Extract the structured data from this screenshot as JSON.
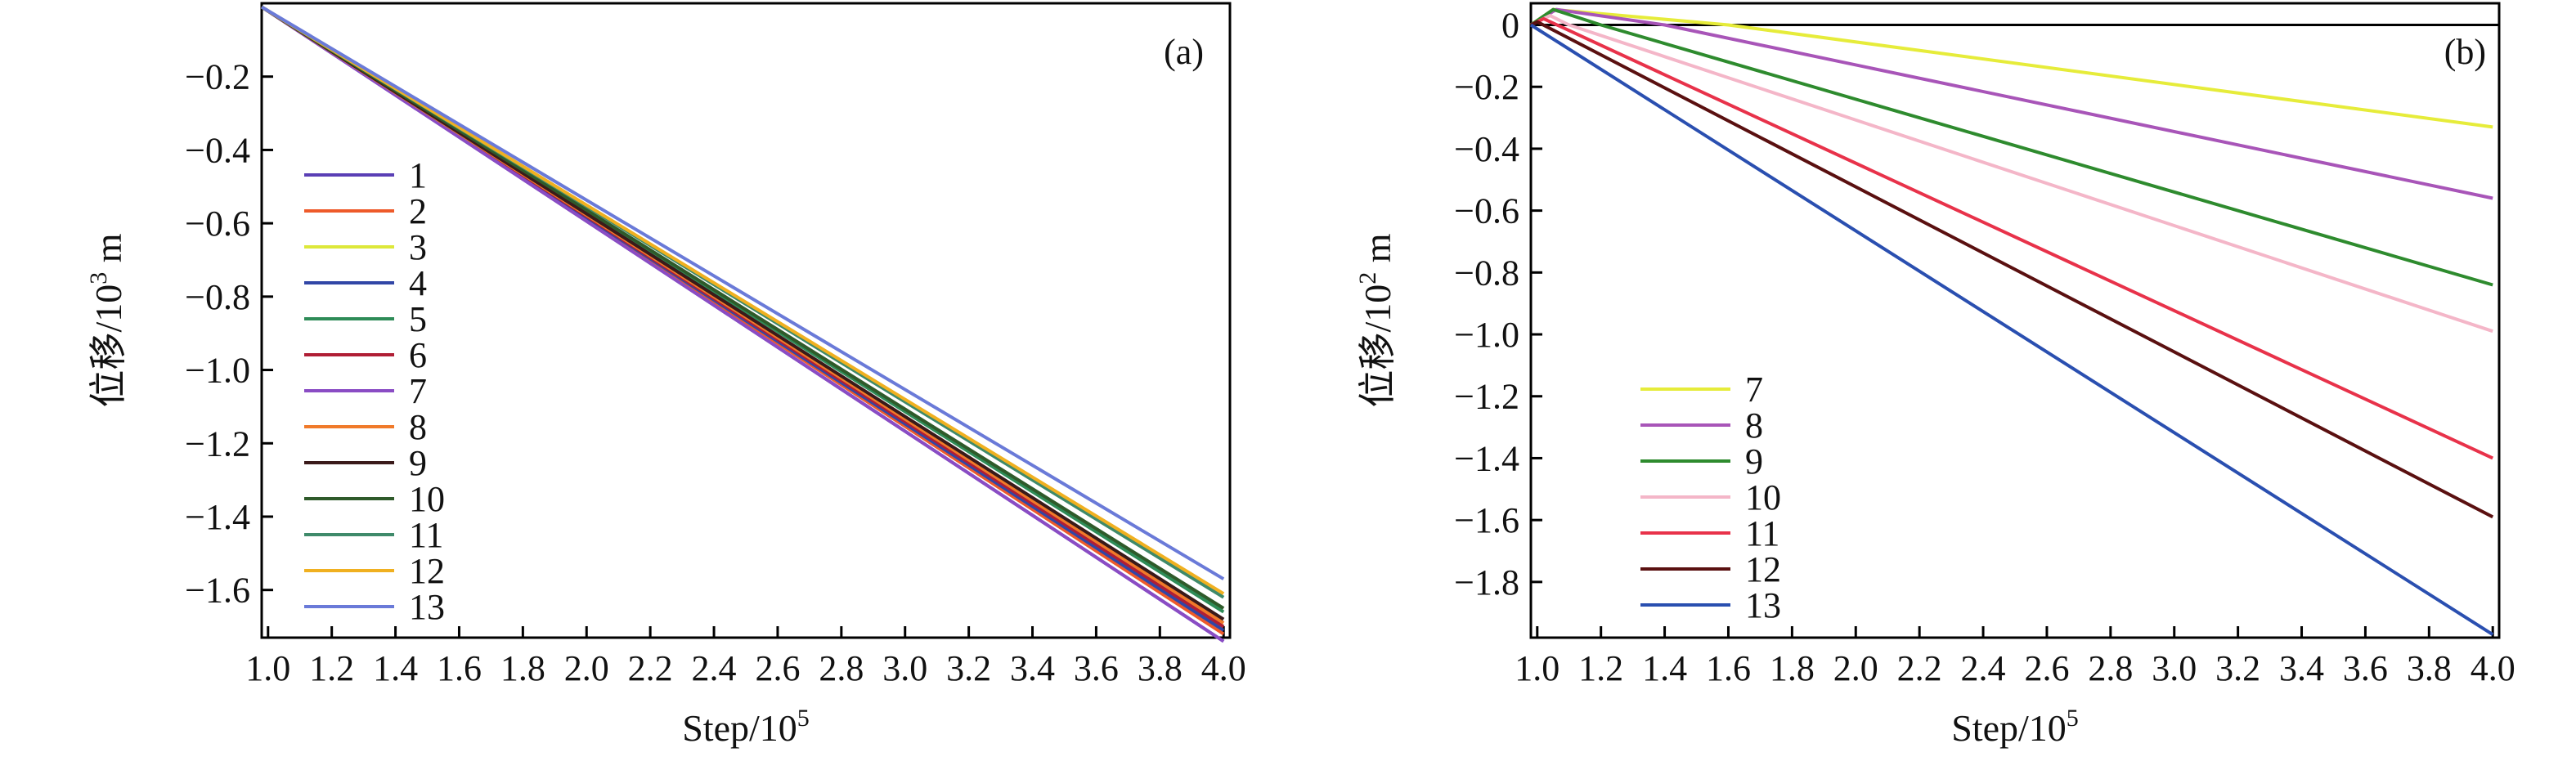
{
  "figure": {
    "background": "#ffffff"
  },
  "chart_data": [
    {
      "type": "line",
      "panel_tag": "(a)",
      "xlabel_main": "Step/10",
      "xlabel_sup": "5",
      "ylabel_main": "位移/10",
      "ylabel_sup": "3",
      "ylabel_unit": " m",
      "xlim": [
        0.98,
        4.02
      ],
      "ylim": [
        -1.73,
        0.0
      ],
      "xticks": [
        1.0,
        1.2,
        1.4,
        1.6,
        1.8,
        2.0,
        2.2,
        2.4,
        2.6,
        2.8,
        3.0,
        3.2,
        3.4,
        3.6,
        3.8,
        4.0
      ],
      "xtick_labels": [
        "1.0",
        "1.2",
        "1.4",
        "1.6",
        "1.8",
        "2.0",
        "2.2",
        "2.4",
        "2.6",
        "2.8",
        "3.0",
        "3.2",
        "3.4",
        "3.6",
        "3.8",
        "4.0"
      ],
      "yticks": [
        -0.2,
        -0.4,
        -0.6,
        -0.8,
        -1.0,
        -1.2,
        -1.4,
        -1.6
      ],
      "ytick_labels": [
        "−0.2",
        "−0.4",
        "−0.6",
        "−0.8",
        "−1.0",
        "−1.2",
        "−1.4",
        "−1.6"
      ],
      "grid": false,
      "legend_position": "left",
      "series": [
        {
          "name": "1",
          "color": "#5a3fb5",
          "x": [
            0.98,
            4.0
          ],
          "y": [
            -0.01,
            -1.74
          ]
        },
        {
          "name": "2",
          "color": "#ee5a2a",
          "x": [
            0.98,
            4.0
          ],
          "y": [
            -0.01,
            -1.72
          ]
        },
        {
          "name": "3",
          "color": "#dde83a",
          "x": [
            0.98,
            4.0
          ],
          "y": [
            -0.01,
            -1.7
          ]
        },
        {
          "name": "4",
          "color": "#3146a6",
          "x": [
            0.98,
            4.0
          ],
          "y": [
            -0.01,
            -1.71
          ]
        },
        {
          "name": "5",
          "color": "#2e8b57",
          "x": [
            0.98,
            4.0
          ],
          "y": [
            -0.01,
            -1.66
          ]
        },
        {
          "name": "6",
          "color": "#b01e35",
          "x": [
            0.98,
            4.0
          ],
          "y": [
            -0.01,
            -1.7
          ]
        },
        {
          "name": "7",
          "color": "#8a4cc4",
          "x": [
            0.98,
            4.0
          ],
          "y": [
            -0.01,
            -1.74
          ]
        },
        {
          "name": "8",
          "color": "#f07a2a",
          "x": [
            0.98,
            4.0
          ],
          "y": [
            -0.01,
            -1.69
          ]
        },
        {
          "name": "9",
          "color": "#3a1a1a",
          "x": [
            0.98,
            4.0
          ],
          "y": [
            -0.01,
            -1.68
          ]
        },
        {
          "name": "10",
          "color": "#2f5a2a",
          "x": [
            0.98,
            4.0
          ],
          "y": [
            -0.01,
            -1.65
          ]
        },
        {
          "name": "11",
          "color": "#3f8a6a",
          "x": [
            0.98,
            4.0
          ],
          "y": [
            -0.01,
            -1.62
          ]
        },
        {
          "name": "12",
          "color": "#f0b020",
          "x": [
            0.98,
            4.0
          ],
          "y": [
            -0.01,
            -1.61
          ]
        },
        {
          "name": "13",
          "color": "#6a7ad8",
          "x": [
            0.98,
            4.0
          ],
          "y": [
            -0.01,
            -1.57
          ]
        }
      ]
    },
    {
      "type": "line",
      "panel_tag": "(b)",
      "xlabel_main": "Step/10",
      "xlabel_sup": "5",
      "ylabel_main": "位移/10",
      "ylabel_sup": "2",
      "ylabel_unit": " m",
      "xlim": [
        0.98,
        4.02
      ],
      "ylim": [
        -1.98,
        0.07
      ],
      "xticks": [
        1.0,
        1.2,
        1.4,
        1.6,
        1.8,
        2.0,
        2.2,
        2.4,
        2.6,
        2.8,
        3.0,
        3.2,
        3.4,
        3.6,
        3.8,
        4.0
      ],
      "xtick_labels": [
        "1.0",
        "1.2",
        "1.4",
        "1.6",
        "1.8",
        "2.0",
        "2.2",
        "2.4",
        "2.6",
        "2.8",
        "3.0",
        "3.2",
        "3.4",
        "3.6",
        "3.8",
        "4.0"
      ],
      "yticks": [
        0,
        -0.2,
        -0.4,
        -0.6,
        -0.8,
        -1.0,
        -1.2,
        -1.4,
        -1.6,
        -1.8
      ],
      "ytick_labels": [
        "0",
        "−0.2",
        "−0.4",
        "−0.6",
        "−0.8",
        "−1.0",
        "−1.2",
        "−1.4",
        "−1.6",
        "−1.8"
      ],
      "zero_line": true,
      "grid": false,
      "legend_position": "lower-left",
      "series": [
        {
          "name": "7",
          "color": "#e6ec3a",
          "x": [
            0.98,
            1.05,
            1.6,
            4.0
          ],
          "y": [
            0.0,
            0.05,
            0.0,
            -0.33
          ]
        },
        {
          "name": "8",
          "color": "#a855b8",
          "x": [
            0.98,
            1.06,
            1.4,
            4.0
          ],
          "y": [
            0.0,
            0.05,
            0.0,
            -0.56
          ]
        },
        {
          "name": "9",
          "color": "#2e8b2e",
          "x": [
            0.98,
            1.05,
            1.2,
            4.0
          ],
          "y": [
            0.0,
            0.05,
            0.0,
            -0.84
          ]
        },
        {
          "name": "10",
          "color": "#f4b6c8",
          "x": [
            0.98,
            1.04,
            1.1,
            4.0
          ],
          "y": [
            0.0,
            0.03,
            0.0,
            -0.99
          ]
        },
        {
          "name": "11",
          "color": "#e8324a",
          "x": [
            0.98,
            1.02,
            4.0
          ],
          "y": [
            0.0,
            0.02,
            -1.4
          ]
        },
        {
          "name": "12",
          "color": "#5a1010",
          "x": [
            0.98,
            1.0,
            4.0
          ],
          "y": [
            0.0,
            0.01,
            -1.59
          ]
        },
        {
          "name": "13",
          "color": "#2a4fb0",
          "x": [
            0.98,
            4.0
          ],
          "y": [
            0.0,
            -1.97
          ]
        }
      ]
    }
  ]
}
